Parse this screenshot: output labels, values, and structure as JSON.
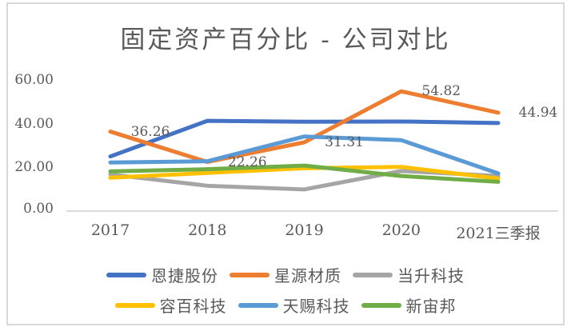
{
  "title": "固定资产百分比 - 公司对比",
  "chart_data": {
    "type": "line",
    "title": "固定资产百分比 - 公司对比",
    "x": [
      "2017",
      "2018",
      "2019",
      "2020",
      "2021三季报"
    ],
    "series": [
      {
        "name": "恩捷股份",
        "color": "#4472C4",
        "values": [
          24.8,
          41.2,
          40.8,
          40.9,
          40.2
        ]
      },
      {
        "name": "星源材质",
        "color": "#ED7D31",
        "values": [
          36.26,
          22.26,
          31.31,
          54.82,
          44.94
        ]
      },
      {
        "name": "当升科技",
        "color": "#A5A5A5",
        "values": [
          16.5,
          11.3,
          9.6,
          18.1,
          15.8
        ]
      },
      {
        "name": "容百科技",
        "color": "#FFC000",
        "values": [
          15.0,
          17.2,
          19.4,
          20.0,
          14.6
        ]
      },
      {
        "name": "天赐科技",
        "color": "#5B9BD5",
        "values": [
          22.0,
          22.6,
          34.0,
          32.3,
          17.0
        ]
      },
      {
        "name": "新宙邦",
        "color": "#70AD47",
        "values": [
          17.9,
          18.9,
          20.6,
          15.8,
          13.1
        ]
      }
    ],
    "point_labels": [
      {
        "series": 1,
        "index": 0,
        "text": "36.26"
      },
      {
        "series": 1,
        "index": 1,
        "text": "22.26"
      },
      {
        "series": 1,
        "index": 2,
        "text": "31.31"
      },
      {
        "series": 1,
        "index": 3,
        "text": "54.82"
      },
      {
        "series": 1,
        "index": 4,
        "text": "44.94"
      }
    ],
    "y_ticks": [
      "60.00",
      "40.00",
      "20.00",
      "0.00"
    ],
    "ylim": [
      0,
      60
    ],
    "xlabel": "",
    "ylabel": "",
    "grid": false,
    "legend_position": "bottom",
    "legend_rows": [
      [
        0,
        1,
        2
      ],
      [
        3,
        4,
        5
      ]
    ],
    "axis_color": "#D9D9D9",
    "text_color": "#595959"
  }
}
